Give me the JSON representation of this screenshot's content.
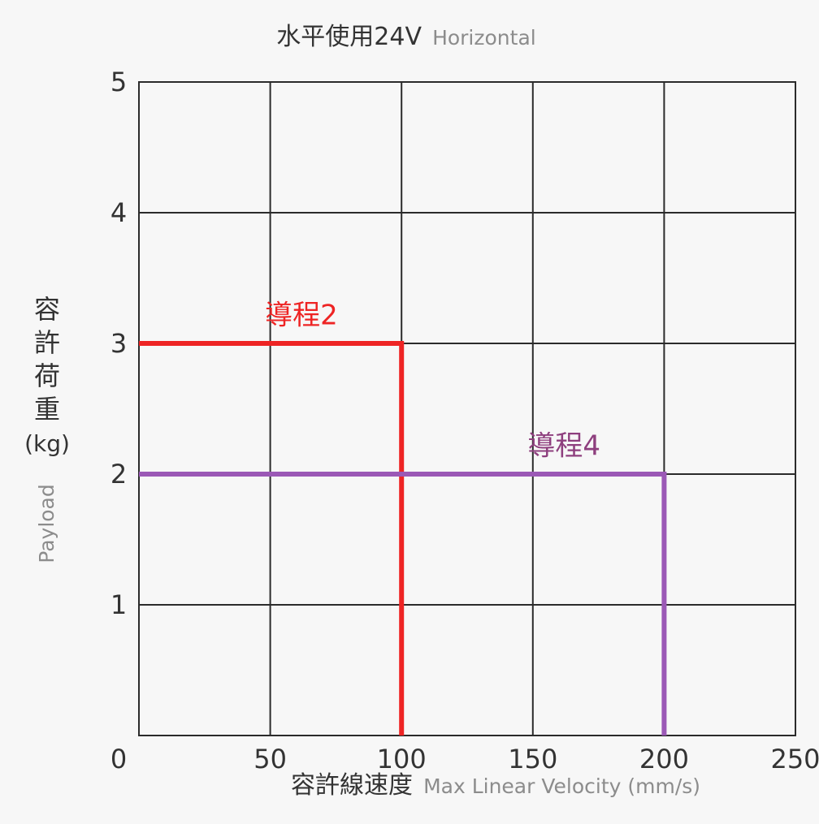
{
  "chart_data": {
    "type": "line",
    "title": "水平使用24V",
    "title_en": "Horizontal",
    "xlabel": "容許線速度",
    "xlabel_en": "Max Linear Velocity (mm/s)",
    "ylabel_chars": [
      "容",
      "許",
      "荷",
      "重",
      "(kg)"
    ],
    "ylabel_en": "Payload",
    "xlim": [
      0,
      250
    ],
    "ylim": [
      0,
      5
    ],
    "x_ticks": [
      0,
      50,
      100,
      150,
      200,
      250
    ],
    "y_ticks": [
      1,
      2,
      3,
      4,
      5
    ],
    "grid": true,
    "series": [
      {
        "name": "導程2",
        "color": "#ee2424",
        "points": [
          [
            0,
            3
          ],
          [
            100,
            3
          ],
          [
            100,
            0
          ]
        ],
        "label_at": [
          48,
          3.22
        ]
      },
      {
        "name": "導程4",
        "color": "#9b59b6",
        "label_color": "#8e3f7e",
        "points": [
          [
            0,
            2
          ],
          [
            200,
            2
          ],
          [
            200,
            0
          ]
        ],
        "label_at": [
          148,
          2.22
        ]
      }
    ]
  }
}
